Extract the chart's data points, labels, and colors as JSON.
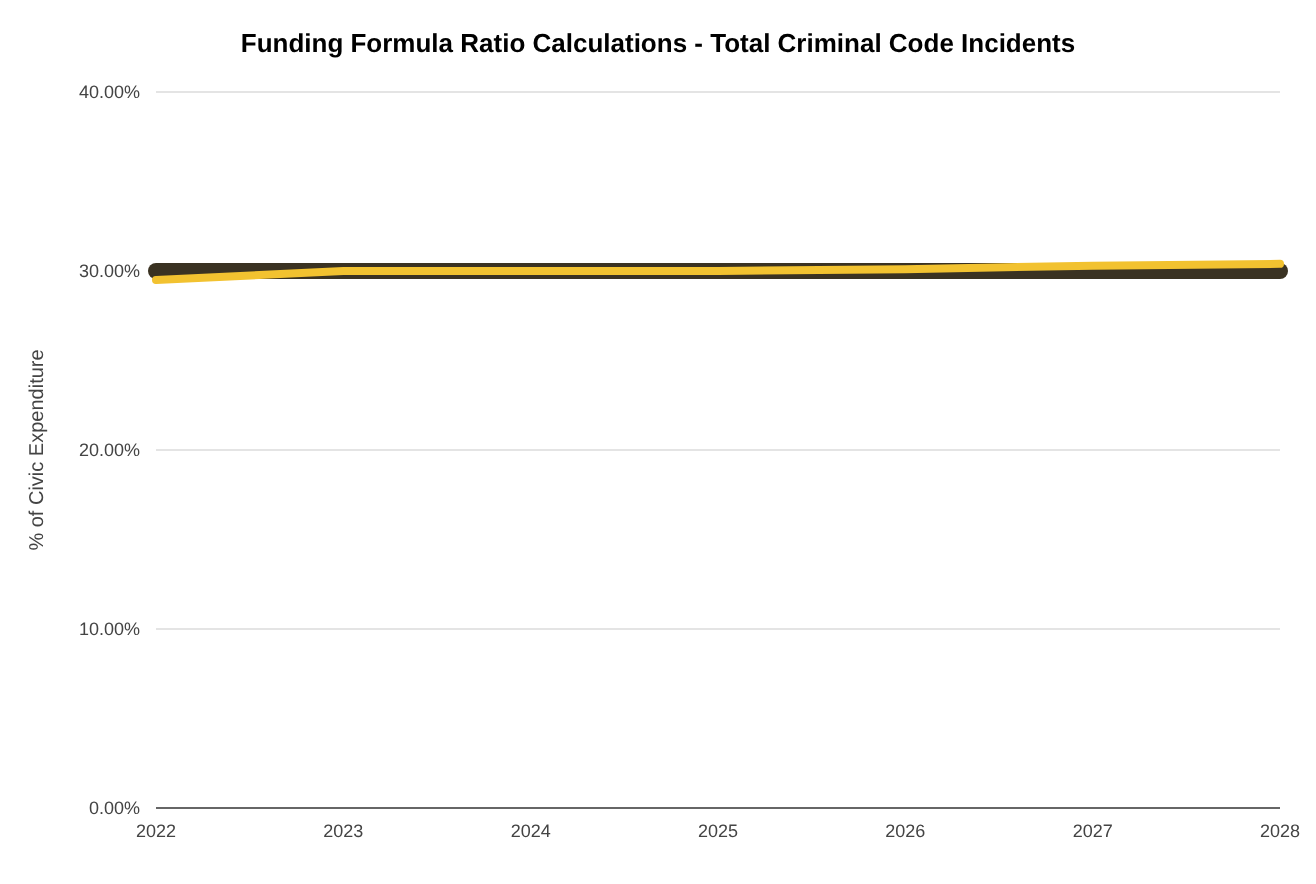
{
  "chart_data": {
    "type": "line",
    "title": "Funding Formula Ratio Calculations - Total Criminal Code Incidents",
    "ylabel": "% of Civic Expenditure",
    "categories": [
      "2022",
      "2023",
      "2024",
      "2025",
      "2026",
      "2027",
      "2028"
    ],
    "series": [
      {
        "color": "#3a3222",
        "values": [
          30,
          30,
          30,
          30,
          30,
          30,
          30
        ]
      },
      {
        "color": "#f2c230",
        "values": [
          29.5,
          30,
          30,
          30,
          30.1,
          30.3,
          30.4
        ]
      }
    ],
    "ylim": [
      0,
      40
    ],
    "yticks": [
      {
        "value": 0,
        "label": "0.00%"
      },
      {
        "value": 10,
        "label": "10.00%"
      },
      {
        "value": 20,
        "label": "20.00%"
      },
      {
        "value": 30,
        "label": "30.00%"
      },
      {
        "value": 40,
        "label": "40.00%"
      }
    ],
    "grid": "y",
    "legend": false,
    "marker": "none",
    "line_style": "solid"
  }
}
